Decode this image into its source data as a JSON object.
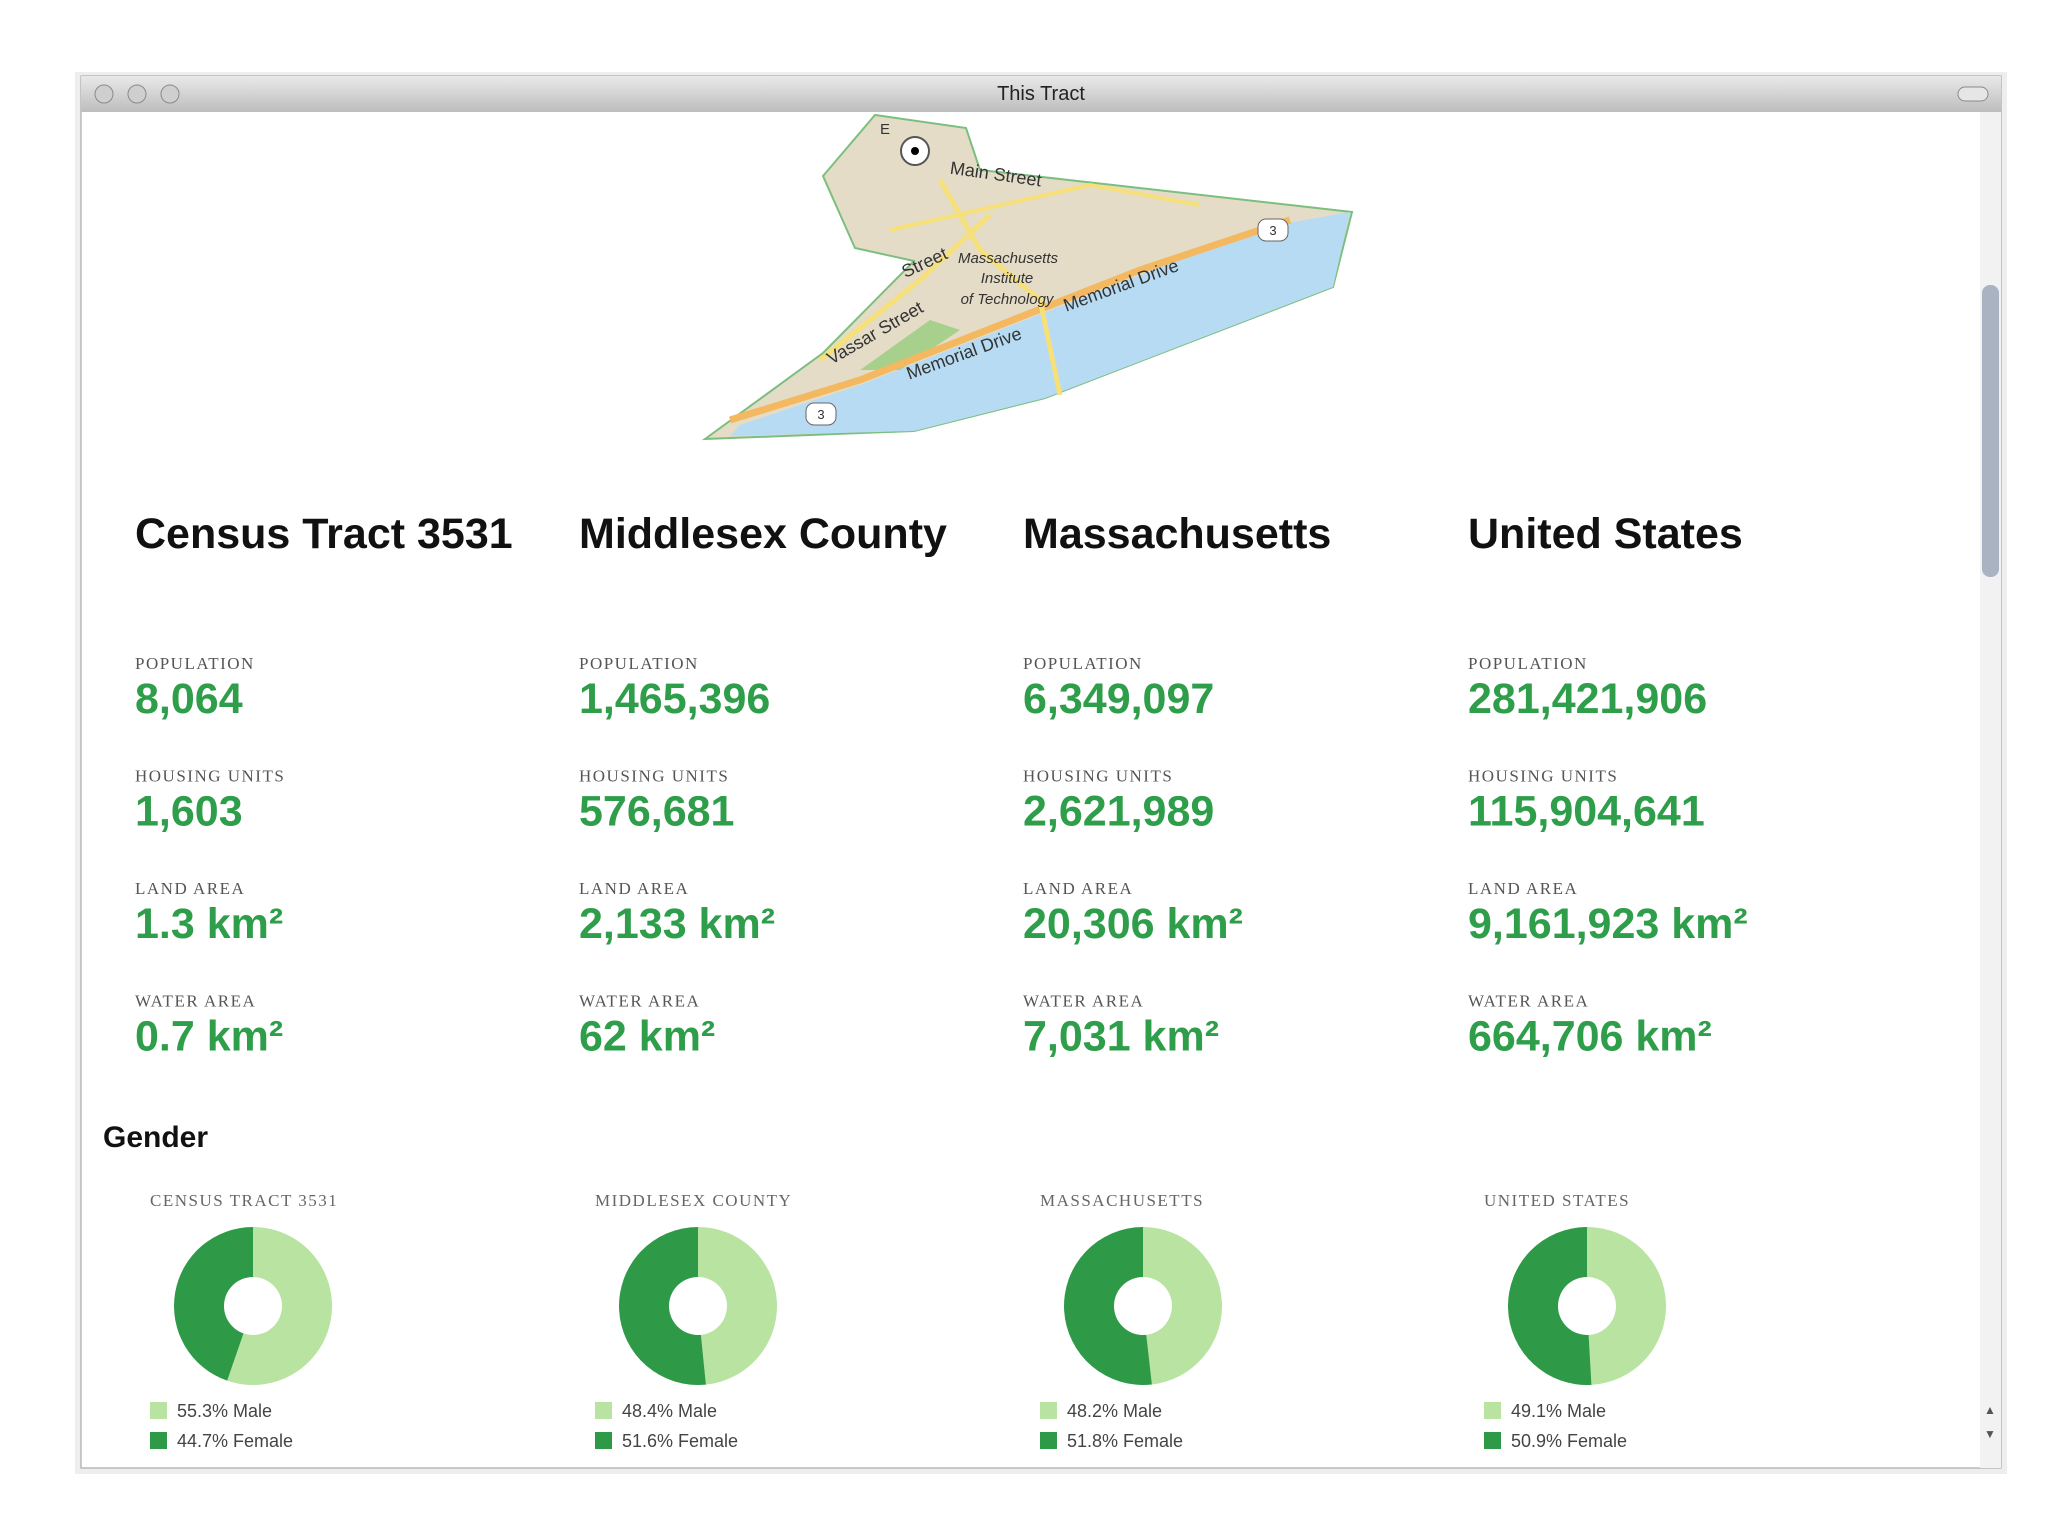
{
  "window": {
    "title": "This Tract"
  },
  "map": {
    "labels": [
      "E",
      "Main Street",
      "Street",
      "Massachusetts",
      "Institute",
      "of Technology",
      "Vassar Street",
      "Memorial Drive",
      "Memorial Drive",
      "3",
      "3"
    ]
  },
  "regions": [
    {
      "name": "Census Tract 3531",
      "stats": [
        {
          "label": "POPULATION",
          "value": "8,064"
        },
        {
          "label": "HOUSING UNITS",
          "value": "1,603"
        },
        {
          "label": "LAND AREA",
          "value": "1.3 km²"
        },
        {
          "label": "WATER AREA",
          "value": "0.7 km²"
        }
      ]
    },
    {
      "name": "Middlesex County",
      "stats": [
        {
          "label": "POPULATION",
          "value": "1,465,396"
        },
        {
          "label": "HOUSING UNITS",
          "value": "576,681"
        },
        {
          "label": "LAND AREA",
          "value": "2,133 km²"
        },
        {
          "label": "WATER AREA",
          "value": "62 km²"
        }
      ]
    },
    {
      "name": "Massachusetts",
      "stats": [
        {
          "label": "POPULATION",
          "value": "6,349,097"
        },
        {
          "label": "HOUSING UNITS",
          "value": "2,621,989"
        },
        {
          "label": "LAND AREA",
          "value": "20,306 km²"
        },
        {
          "label": "WATER AREA",
          "value": "7,031 km²"
        }
      ]
    },
    {
      "name": "United States",
      "stats": [
        {
          "label": "POPULATION",
          "value": "281,421,906"
        },
        {
          "label": "HOUSING UNITS",
          "value": "115,904,641"
        },
        {
          "label": "LAND AREA",
          "value": "9,161,923 km²"
        },
        {
          "label": "WATER AREA",
          "value": "664,706 km²"
        }
      ]
    }
  ],
  "gender": {
    "title": "Gender",
    "charts": [
      {
        "type": "donut",
        "title": "CENSUS TRACT 3531",
        "slices": [
          {
            "value": 55.3,
            "label": "55.3% Male",
            "color": "#b8e3a0"
          },
          {
            "value": 44.7,
            "label": "44.7% Female",
            "color": "#2e9a48"
          }
        ]
      },
      {
        "type": "donut",
        "title": "MIDDLESEX COUNTY",
        "slices": [
          {
            "value": 48.4,
            "label": "48.4% Male",
            "color": "#b8e3a0"
          },
          {
            "value": 51.6,
            "label": "51.6% Female",
            "color": "#2e9a48"
          }
        ]
      },
      {
        "type": "donut",
        "title": "MASSACHUSETTS",
        "slices": [
          {
            "value": 48.2,
            "label": "48.2% Male",
            "color": "#b8e3a0"
          },
          {
            "value": 51.8,
            "label": "51.8% Female",
            "color": "#2e9a48"
          }
        ]
      },
      {
        "type": "donut",
        "title": "UNITED STATES",
        "slices": [
          {
            "value": 49.1,
            "label": "49.1% Male",
            "color": "#b8e3a0"
          },
          {
            "value": 50.9,
            "label": "50.9% Female",
            "color": "#2e9a48"
          }
        ]
      }
    ]
  }
}
